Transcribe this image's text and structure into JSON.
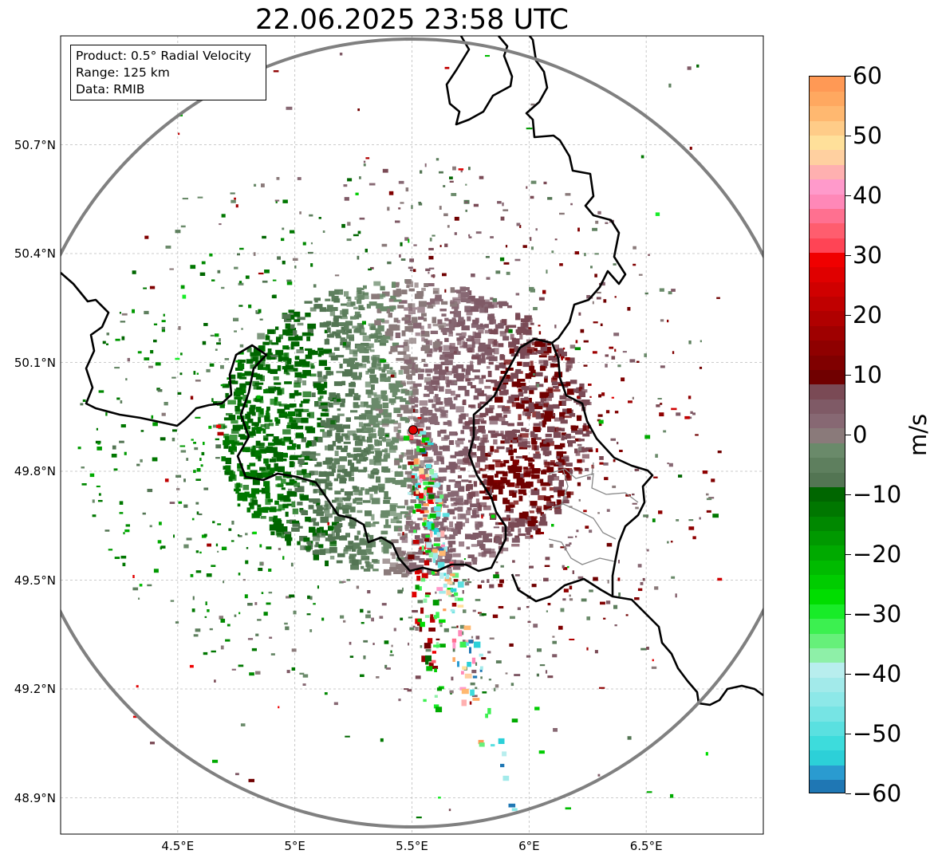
{
  "title": "22.06.2025 23:58 UTC",
  "info": {
    "product": "Product: 0.5° Radial Velocity",
    "range": "Range: 125 km",
    "source": "Data: RMIB"
  },
  "map": {
    "lon_range": [
      4.0,
      7.0
    ],
    "lat_range": [
      48.8,
      51.0
    ],
    "lon_ticks": [
      "4.5°E",
      "5°E",
      "5.5°E",
      "6°E",
      "6.5°E"
    ],
    "lat_ticks": [
      "50.7°N",
      "50.4°N",
      "50.1°N",
      "49.8°N",
      "49.5°N",
      "49.2°N",
      "48.9°N"
    ],
    "radar_site": {
      "lon": 5.505,
      "lat": 49.914
    },
    "range_km": 125,
    "gridlines": true
  },
  "colorbar": {
    "unit": "m/s",
    "min": -60,
    "max": 60,
    "ticks": [
      "60",
      "50",
      "40",
      "30",
      "20",
      "10",
      "0",
      "−10",
      "−20",
      "−30",
      "−40",
      "−50",
      "−60"
    ],
    "colors": [
      "#1f77b4",
      "#2a9bd0",
      "#2cd0d8",
      "#3ddcdc",
      "#5ae0e0",
      "#76e4e4",
      "#8de8e8",
      "#a2eaea",
      "#b8eeee",
      "#8ef0a8",
      "#66f07a",
      "#3cf050",
      "#18ec28",
      "#00dd00",
      "#00cc00",
      "#00bb00",
      "#00aa00",
      "#009900",
      "#008800",
      "#007700",
      "#006600",
      "#537553",
      "#5e7f5e",
      "#6a8a6a",
      "#8a7a7a",
      "#876873",
      "#7f5a66",
      "#7a4a55",
      "#700000",
      "#800000",
      "#8f0000",
      "#9f0000",
      "#b00000",
      "#c00000",
      "#d00000",
      "#e00000",
      "#f00000",
      "#ff4455",
      "#ff5d6e",
      "#ff7090",
      "#ff88b8",
      "#ff9acb",
      "#ffb0b0",
      "#ffd0a0",
      "#ffe09a",
      "#ffcc88",
      "#ffb870",
      "#ffa860",
      "#ff9955"
    ]
  },
  "echo_field": {
    "main": [
      {
        "lon": 4.8,
        "lat": 49.75,
        "vr": -12
      },
      {
        "lon": 4.9,
        "lat": 49.95,
        "vr": -11
      },
      {
        "lon": 5.0,
        "lat": 50.1,
        "vr": -10
      },
      {
        "lon": 5.15,
        "lat": 50.05,
        "vr": -9
      },
      {
        "lon": 5.2,
        "lat": 49.85,
        "vr": -7
      },
      {
        "lon": 5.3,
        "lat": 50.1,
        "vr": -4
      },
      {
        "lon": 5.4,
        "lat": 49.95,
        "vr": -2
      },
      {
        "lon": 5.5,
        "lat": 50.15,
        "vr": 1
      },
      {
        "lon": 5.6,
        "lat": 49.95,
        "vr": 3
      },
      {
        "lon": 5.7,
        "lat": 50.1,
        "vr": 5
      },
      {
        "lon": 5.8,
        "lat": 49.95,
        "vr": 7
      },
      {
        "lon": 5.9,
        "lat": 49.8,
        "vr": 10
      },
      {
        "lon": 5.95,
        "lat": 50.05,
        "vr": 9
      },
      {
        "lon": 5.35,
        "lat": 49.7,
        "vr": -3
      },
      {
        "lon": 5.6,
        "lat": 49.65,
        "vr": 4
      },
      {
        "lon": 5.1,
        "lat": 49.65,
        "vr": -8
      }
    ],
    "spokes": [
      {
        "lon": 5.65,
        "lat": 49.45,
        "vr": -40
      },
      {
        "lon": 5.55,
        "lat": 49.25,
        "vr": 20
      },
      {
        "lon": 5.8,
        "lat": 49.05,
        "vr": 50
      },
      {
        "lon": 5.9,
        "lat": 48.85,
        "vr": -45
      },
      {
        "lon": 5.6,
        "lat": 49.15,
        "vr": -25
      }
    ]
  }
}
